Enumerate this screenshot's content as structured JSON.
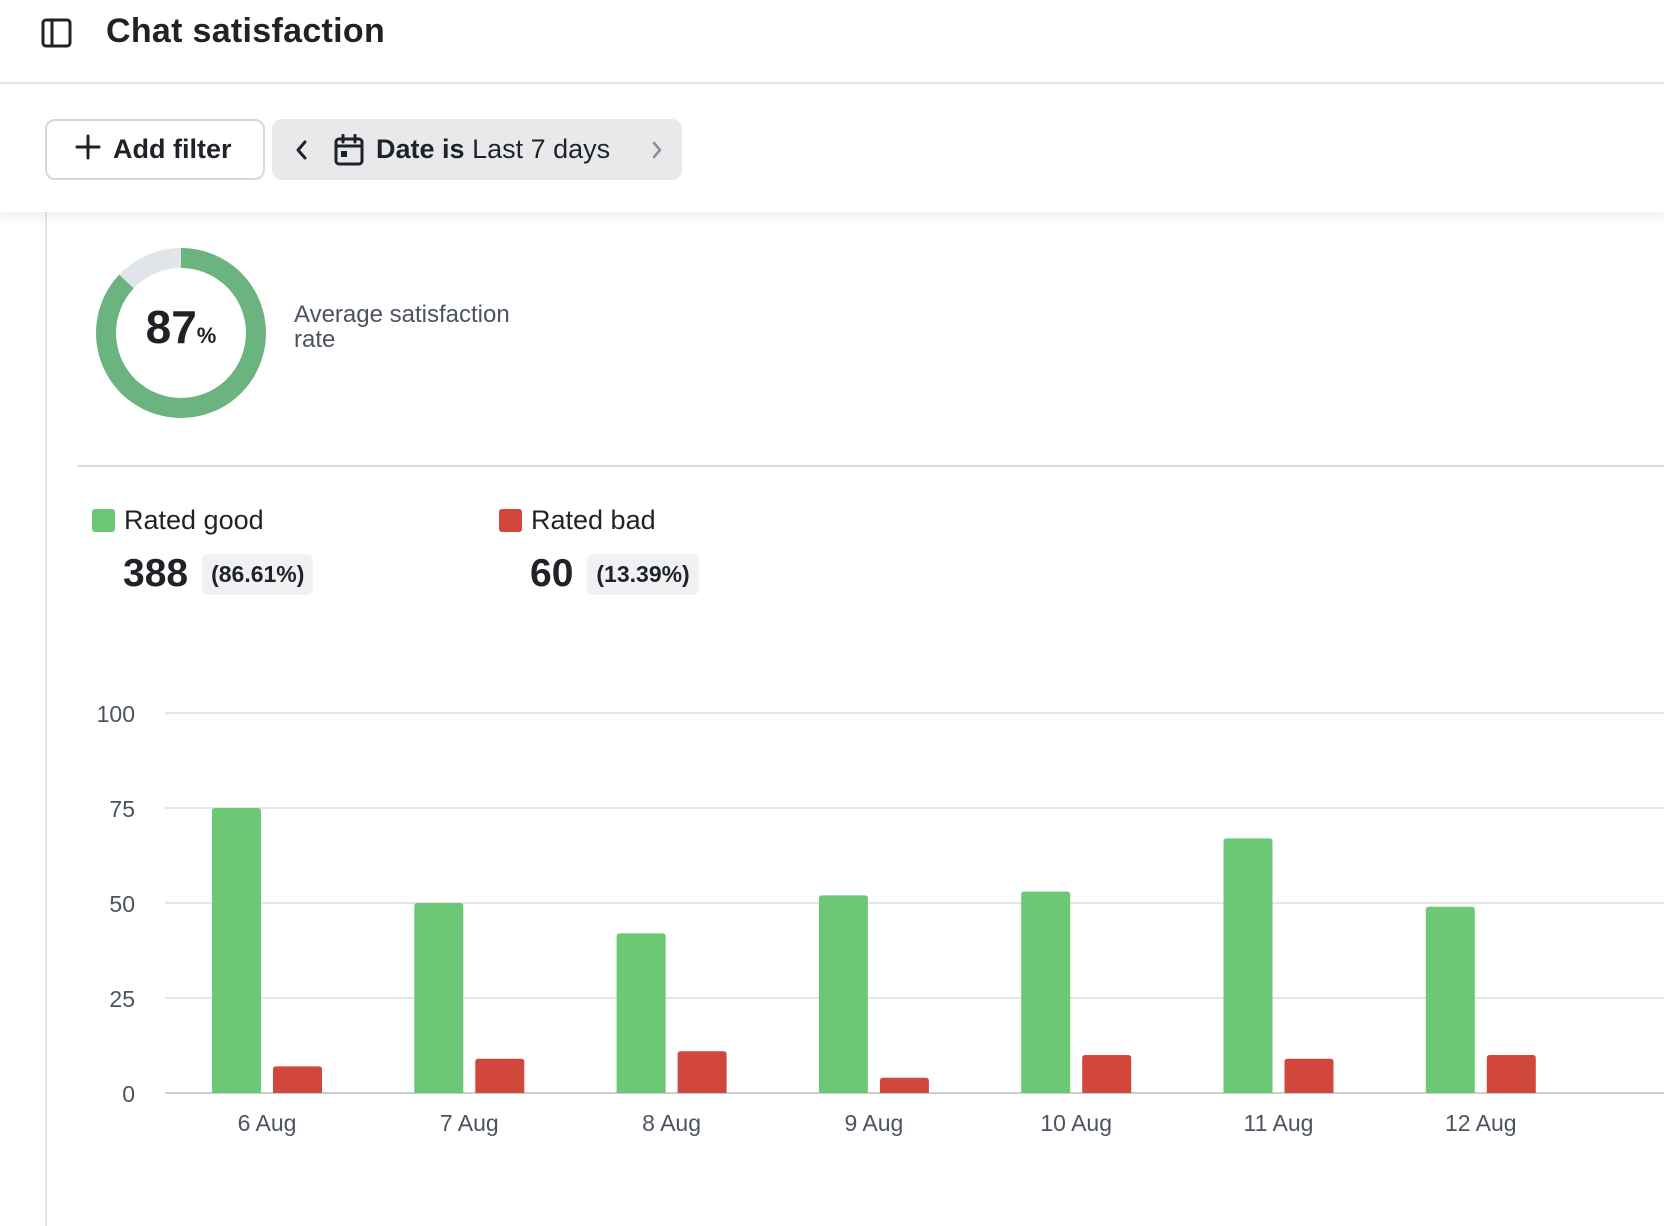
{
  "header": {
    "title": "Chat satisfaction",
    "sidebar_toggle_icon": "sidebar-toggle-icon"
  },
  "filters": {
    "add_filter_label": "Add filter",
    "date_filter": {
      "field": "Date is",
      "value": "Last 7 days"
    }
  },
  "summary": {
    "rate_value": "87",
    "rate_unit": "%",
    "rate_fraction": 0.87,
    "rate_label": "Average satisfaction rate",
    "colors": {
      "ring": "#6bb37f",
      "ring_track": "#e1e4e8"
    }
  },
  "legend": [
    {
      "name": "Rated good",
      "color": "#6cc875",
      "count": "388",
      "share": "(86.61%)"
    },
    {
      "name": "Rated bad",
      "color": "#d2473c",
      "count": "60",
      "share": "(13.39%)"
    }
  ],
  "chart_data": {
    "type": "bar",
    "categories": [
      "6 Aug",
      "7 Aug",
      "8 Aug",
      "9 Aug",
      "10 Aug",
      "11 Aug",
      "12 Aug"
    ],
    "series": [
      {
        "name": "Rated good",
        "color": "#6cc875",
        "values": [
          75,
          50,
          42,
          52,
          53,
          67,
          49
        ]
      },
      {
        "name": "Rated bad",
        "color": "#d2473c",
        "values": [
          7,
          9,
          11,
          4,
          10,
          9,
          10
        ]
      }
    ],
    "yticks": [
      0,
      25,
      50,
      75,
      100
    ],
    "ylim": [
      0,
      100
    ],
    "grid": true,
    "xlabel": "",
    "ylabel": ""
  }
}
